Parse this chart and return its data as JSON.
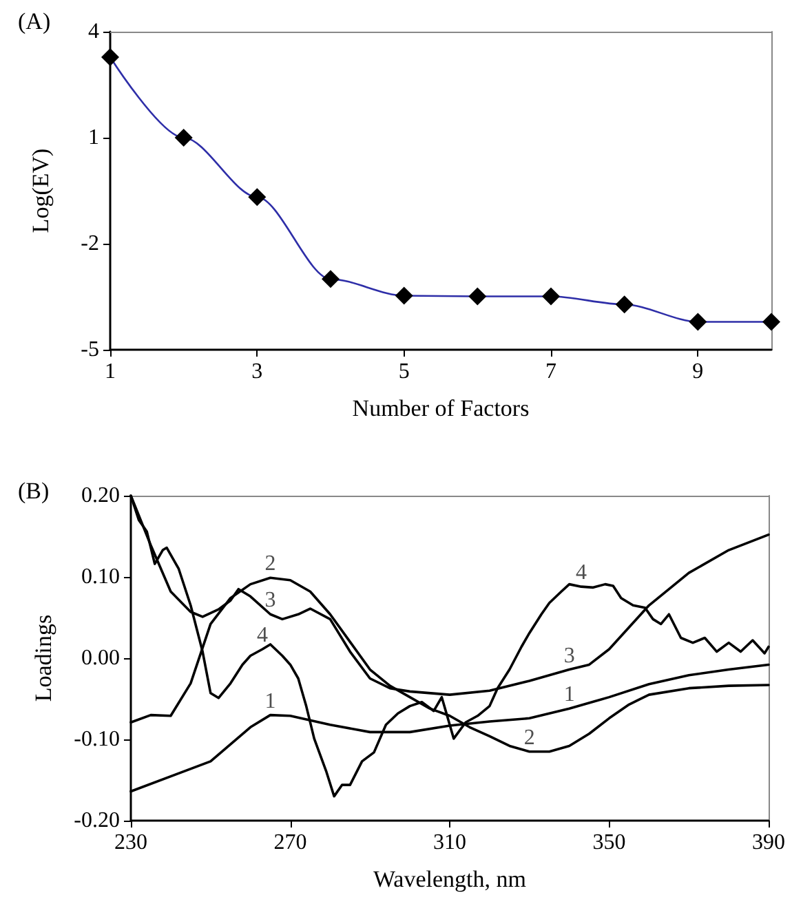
{
  "chart_data": [
    {
      "type": "line",
      "title": "(A)",
      "xlabel": "Number of Factors",
      "ylabel": "Log(EV)",
      "marker": "diamond",
      "grid": false,
      "x": [
        1,
        2,
        3,
        4,
        5,
        6,
        7,
        8,
        9,
        10
      ],
      "series": [
        {
          "color": "#2e2ea8",
          "values": [
            3.28,
            1.0,
            -0.68,
            -3.0,
            -3.47,
            -3.49,
            -3.49,
            -3.72,
            -4.21,
            -4.21
          ]
        }
      ],
      "xlim": [
        1,
        10
      ],
      "xticks": [
        1,
        3,
        5,
        7,
        9
      ],
      "ylim": [
        -5,
        4
      ],
      "yticks": [
        -5,
        -2,
        1,
        4
      ]
    },
    {
      "type": "line",
      "title": "(B)",
      "xlabel": "Wavelength, nm",
      "ylabel": "Loadings",
      "marker": "none",
      "grid": false,
      "series": [
        {
          "color": "#000000",
          "x": [
            230,
            250,
            260,
            265,
            270,
            280,
            290,
            300,
            310,
            320,
            330,
            340,
            350,
            360,
            370,
            380,
            390
          ],
          "values": [
            -0.164,
            -0.127,
            -0.085,
            -0.07,
            -0.071,
            -0.082,
            -0.091,
            -0.091,
            -0.083,
            -0.078,
            -0.074,
            -0.062,
            -0.048,
            -0.032,
            -0.021,
            -0.014,
            -0.008
          ]
        },
        {
          "color": "#000000",
          "x": [
            230,
            235,
            240,
            245,
            250,
            255,
            260,
            265,
            270,
            275,
            280,
            285,
            290,
            295,
            300,
            305,
            310,
            315,
            320,
            325,
            330,
            335,
            340,
            345,
            350,
            355,
            360,
            370,
            380,
            390
          ],
          "values": [
            -0.079,
            -0.07,
            -0.071,
            -0.031,
            0.042,
            0.074,
            0.091,
            0.099,
            0.096,
            0.082,
            0.054,
            0.02,
            -0.014,
            -0.034,
            -0.048,
            -0.062,
            -0.071,
            -0.085,
            -0.096,
            -0.108,
            -0.115,
            -0.115,
            -0.108,
            -0.093,
            -0.074,
            -0.057,
            -0.045,
            -0.037,
            -0.034,
            -0.033
          ]
        },
        {
          "color": "#000000",
          "x": [
            230,
            235,
            240,
            245,
            248,
            252,
            255,
            257,
            260,
            265,
            268,
            272,
            275,
            280,
            285,
            290,
            295,
            300,
            310,
            320,
            330,
            340,
            345,
            350,
            360,
            370,
            380,
            390
          ],
          "values": [
            0.2,
            0.139,
            0.082,
            0.057,
            0.051,
            0.06,
            0.071,
            0.085,
            0.076,
            0.054,
            0.048,
            0.054,
            0.061,
            0.048,
            0.008,
            -0.025,
            -0.037,
            -0.041,
            -0.045,
            -0.04,
            -0.028,
            -0.014,
            -0.008,
            0.011,
            0.065,
            0.105,
            0.133,
            0.152
          ]
        },
        {
          "color": "#000000",
          "x": [
            230,
            232,
            234,
            236,
            238,
            239,
            242,
            245,
            248,
            250,
            252,
            255,
            258,
            260,
            263,
            265,
            268,
            270,
            272,
            274,
            276,
            279,
            281,
            283,
            285,
            288,
            291,
            294,
            297,
            300,
            303,
            306,
            308,
            311,
            314,
            317,
            320,
            322,
            325,
            328,
            330,
            333,
            335,
            338,
            340,
            343,
            346,
            349,
            351,
            353,
            356,
            359,
            361,
            363,
            365,
            368,
            371,
            374,
            377,
            380,
            383,
            386,
            389,
            390
          ],
          "values": [
            0.2,
            0.17,
            0.156,
            0.116,
            0.133,
            0.136,
            0.11,
            0.065,
            0.008,
            -0.043,
            -0.049,
            -0.031,
            -0.008,
            0.003,
            0.011,
            0.017,
            0.003,
            -0.008,
            -0.025,
            -0.059,
            -0.099,
            -0.139,
            -0.17,
            -0.156,
            -0.156,
            -0.127,
            -0.116,
            -0.082,
            -0.068,
            -0.059,
            -0.054,
            -0.065,
            -0.048,
            -0.099,
            -0.079,
            -0.071,
            -0.059,
            -0.037,
            -0.014,
            0.014,
            0.031,
            0.054,
            0.068,
            0.082,
            0.091,
            0.088,
            0.087,
            0.091,
            0.089,
            0.074,
            0.065,
            0.062,
            0.048,
            0.042,
            0.054,
            0.025,
            0.019,
            0.025,
            0.008,
            0.019,
            0.008,
            0.022,
            0.006,
            0.014
          ]
        }
      ],
      "annotations": [
        {
          "text": "1",
          "x": 265,
          "y": -0.07
        },
        {
          "text": "2",
          "x": 265,
          "y": 0.099
        },
        {
          "text": "3",
          "x": 265,
          "y": 0.054
        },
        {
          "text": "4",
          "x": 263,
          "y": 0.011
        },
        {
          "text": "1",
          "x": 340,
          "y": -0.062
        },
        {
          "text": "2",
          "x": 330,
          "y": -0.115
        },
        {
          "text": "3",
          "x": 340,
          "y": -0.014
        },
        {
          "text": "4",
          "x": 343,
          "y": 0.088
        }
      ],
      "xlim": [
        230,
        390
      ],
      "xticks": [
        230,
        270,
        310,
        350,
        390
      ],
      "ylim": [
        -0.2,
        0.2
      ],
      "yticks": [
        {
          "value": -0.2,
          "label": "-0.20"
        },
        {
          "value": -0.1,
          "label": "-0.10"
        },
        {
          "value": 0,
          "label": "0.00"
        },
        {
          "value": 0.1,
          "label": "0.10"
        },
        {
          "value": 0.2,
          "label": "0.20"
        }
      ]
    }
  ]
}
